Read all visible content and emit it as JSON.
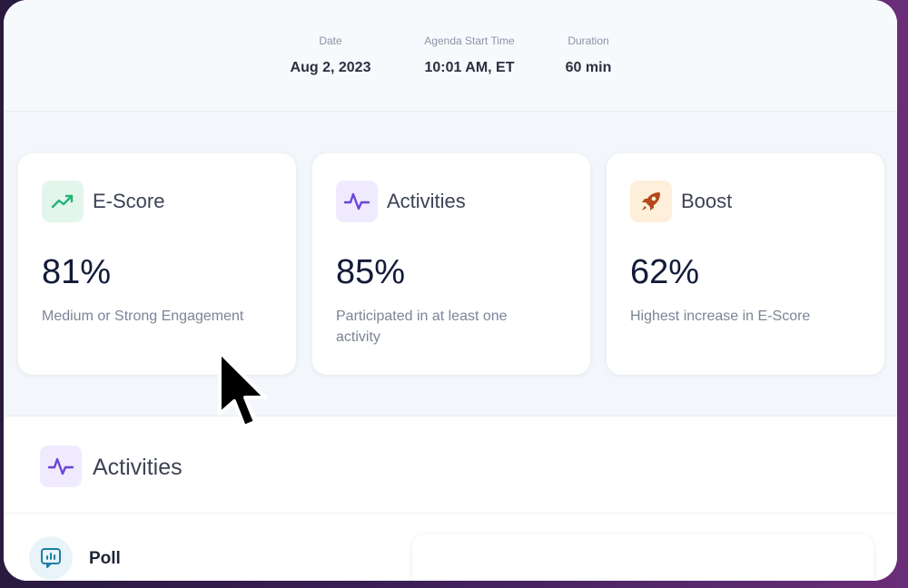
{
  "meeting": {
    "date": {
      "label": "Date",
      "value": "Aug 2, 2023"
    },
    "start": {
      "label": "Agenda Start Time",
      "value": "10:01 AM, ET"
    },
    "duration": {
      "label": "Duration",
      "value": "60 min"
    }
  },
  "cards": [
    {
      "title": "E-Score",
      "value": "81%",
      "description": "Medium or Strong Engagement",
      "icon": "trending-up-icon",
      "icon_bg": "#e3f6ec",
      "icon_color": "#22b573"
    },
    {
      "title": "Activities",
      "value": "85%",
      "description": "Participated in at least one activity",
      "icon": "activity-pulse-icon",
      "icon_bg": "#efeafd",
      "icon_color": "#6a45d8"
    },
    {
      "title": "Boost",
      "value": "62%",
      "description": "Highest increase in E-Score",
      "icon": "rocket-icon",
      "icon_bg": "#fdefd9",
      "icon_color": "#b5481c"
    }
  ],
  "activities_section": {
    "title": "Activities",
    "icon": "activity-pulse-icon",
    "items": [
      {
        "label": "Poll",
        "icon": "poll-chart-icon"
      }
    ]
  }
}
